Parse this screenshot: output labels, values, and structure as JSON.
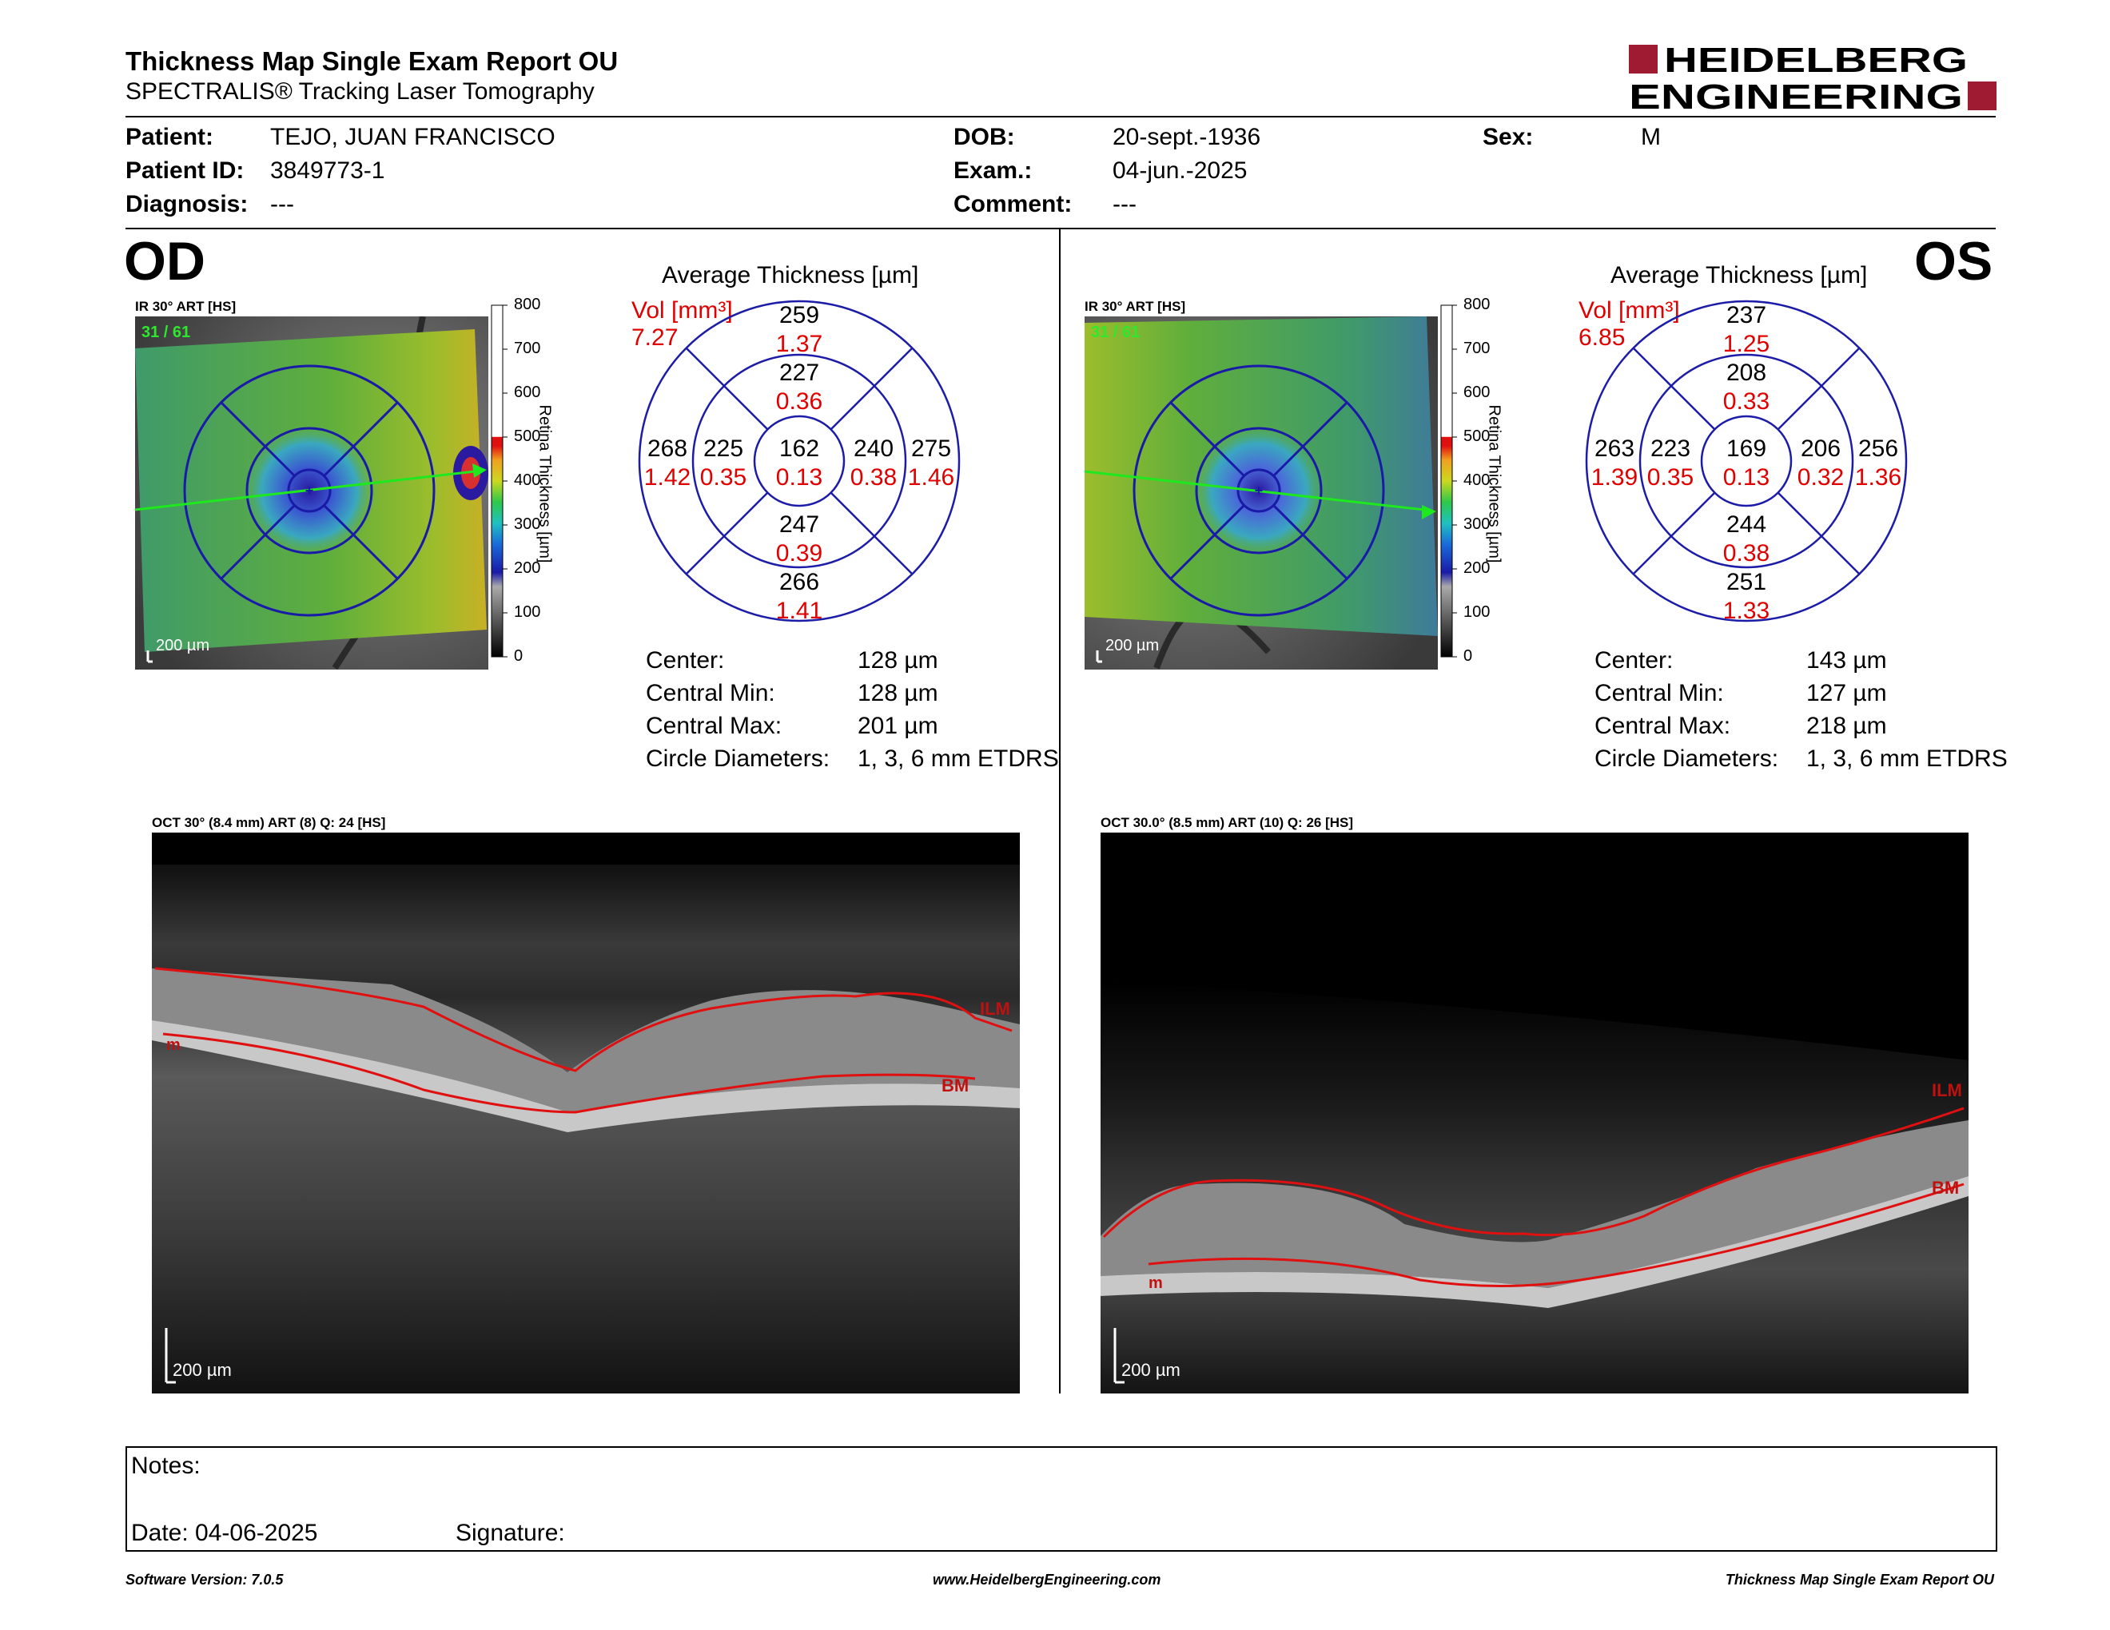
{
  "header": {
    "title": "Thickness Map Single Exam Report OU",
    "subtitle": "SPECTRALIS® Tracking Laser Tomography",
    "logo_line1": "HEIDELBERG",
    "logo_line2": "ENGINEERING"
  },
  "patient": {
    "patient_label": "Patient:",
    "patient_value": "TEJO, JUAN FRANCISCO",
    "id_label": "Patient ID:",
    "id_value": "3849773-1",
    "diagnosis_label": "Diagnosis:",
    "diagnosis_value": "---",
    "dob_label": "DOB:",
    "dob_value": "20-sept.-1936",
    "exam_label": "Exam.:",
    "exam_value": "04-jun.-2025",
    "comment_label": "Comment:",
    "comment_value": "---",
    "sex_label": "Sex:",
    "sex_value": "M"
  },
  "colorbar": {
    "ticks": [
      "800",
      "700",
      "600",
      "500",
      "400",
      "300",
      "200",
      "100",
      "0"
    ],
    "title": "Retina  Thickness [µm]"
  },
  "od": {
    "eye": "OD",
    "ir_label": "IR 30° ART [HS]",
    "ir_counter": "31 / 61",
    "scale": "200 µm",
    "avg_title": "Average Thickness [µm]",
    "vol_label": "Vol [mm³]",
    "vol_value": "7.27",
    "sectors": {
      "outer_sup": [
        "259",
        "1.37"
      ],
      "inner_sup": [
        "227",
        "0.36"
      ],
      "outer_temp": [
        "268",
        "1.42"
      ],
      "inner_temp": [
        "225",
        "0.35"
      ],
      "center": [
        "162",
        "0.13"
      ],
      "inner_nas": [
        "240",
        "0.38"
      ],
      "outer_nas": [
        "275",
        "1.46"
      ],
      "inner_inf": [
        "247",
        "0.39"
      ],
      "outer_inf": [
        "266",
        "1.41"
      ]
    },
    "stats": [
      {
        "label": "Center:",
        "value": "128 µm"
      },
      {
        "label": "Central Min:",
        "value": "128 µm"
      },
      {
        "label": "Central Max:",
        "value": "201 µm"
      },
      {
        "label": "Circle Diameters:",
        "value": "1, 3, 6 mm ETDRS"
      }
    ],
    "oct_label": "OCT 30° (8.4 mm) ART (8) Q: 24 [HS]",
    "ilm": "ILM",
    "bm": "BM",
    "m": "m",
    "oct_scale": "200 µm"
  },
  "os": {
    "eye": "OS",
    "ir_label": "IR 30° ART [HS]",
    "ir_counter": "31 / 61",
    "scale": "200 µm",
    "avg_title": "Average Thickness [µm]",
    "vol_label": "Vol [mm³]",
    "vol_value": "6.85",
    "sectors": {
      "outer_sup": [
        "237",
        "1.25"
      ],
      "inner_sup": [
        "208",
        "0.33"
      ],
      "outer_temp": [
        "263",
        "1.39"
      ],
      "inner_temp": [
        "223",
        "0.35"
      ],
      "center": [
        "169",
        "0.13"
      ],
      "inner_nas": [
        "206",
        "0.32"
      ],
      "outer_nas": [
        "256",
        "1.36"
      ],
      "inner_inf": [
        "244",
        "0.38"
      ],
      "outer_inf": [
        "251",
        "1.33"
      ]
    },
    "stats": [
      {
        "label": "Center:",
        "value": "143 µm"
      },
      {
        "label": "Central Min:",
        "value": "127 µm"
      },
      {
        "label": "Central Max:",
        "value": "218 µm"
      },
      {
        "label": "Circle Diameters:",
        "value": "1, 3, 6 mm ETDRS"
      }
    ],
    "oct_label": "OCT 30.0° (8.5 mm) ART (10) Q: 26 [HS]",
    "ilm": "ILM",
    "bm": "BM",
    "m": "m",
    "oct_scale": "200 µm"
  },
  "notes": {
    "notes_label": "Notes:",
    "date_label": "Date: 04-06-2025",
    "signature_label": "Signature:"
  },
  "footer": {
    "version": "Software Version: 7.0.5",
    "website": "www.HeidelbergEngineering.com",
    "report": "Thickness Map Single Exam Report OU"
  },
  "colors": {
    "accent_red": "#e00000",
    "logo_red": "#9e1b32",
    "ring_blue": "#1c1ca8"
  }
}
